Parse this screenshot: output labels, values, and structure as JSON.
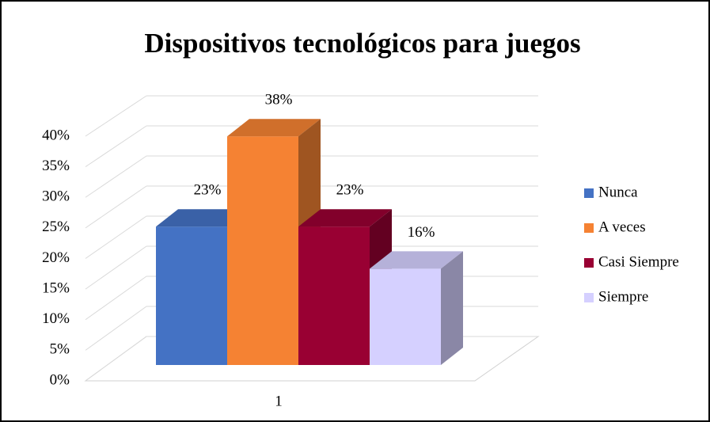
{
  "chart_data": {
    "type": "bar3d",
    "title": "Dispositivos tecnológicos para juegos",
    "categories": [
      "1"
    ],
    "series": [
      {
        "name": "Nunca",
        "color": "#4472c4",
        "values": [
          23
        ],
        "value_labels": [
          "23%"
        ]
      },
      {
        "name": "A veces",
        "color": "#f58233",
        "values": [
          38
        ],
        "value_labels": [
          "38%"
        ]
      },
      {
        "name": "Casi Siempre",
        "color": "#990033",
        "values": [
          23
        ],
        "value_labels": [
          "23%"
        ]
      },
      {
        "name": "Siempre",
        "color": "#d5d0ff",
        "values": [
          16
        ],
        "value_labels": [
          "16%"
        ]
      }
    ],
    "ylim": [
      0,
      40
    ],
    "yticks": [
      {
        "value": 0,
        "label": "0%"
      },
      {
        "value": 5,
        "label": "5%"
      },
      {
        "value": 10,
        "label": "10%"
      },
      {
        "value": 15,
        "label": "15%"
      },
      {
        "value": 20,
        "label": "20%"
      },
      {
        "value": 25,
        "label": "25%"
      },
      {
        "value": 30,
        "label": "30%"
      },
      {
        "value": 35,
        "label": "35%"
      },
      {
        "value": 40,
        "label": "40%"
      }
    ],
    "grid": true,
    "legend": "right"
  }
}
